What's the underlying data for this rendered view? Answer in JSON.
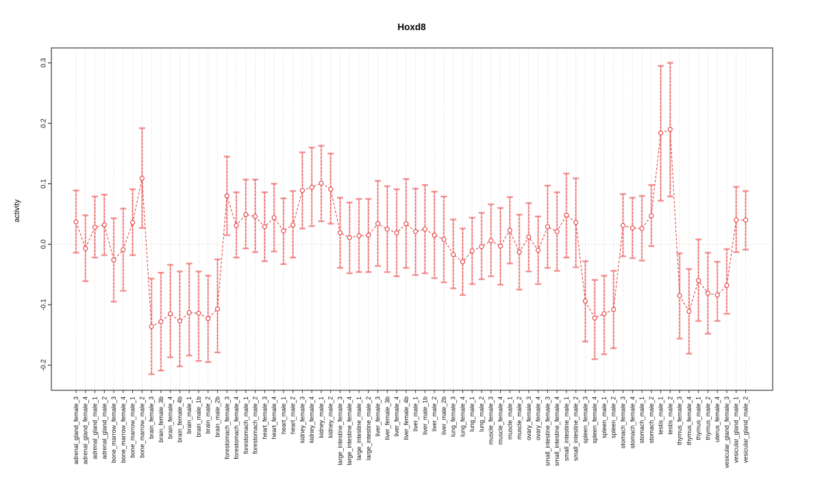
{
  "chart_data": {
    "type": "line",
    "title": "Hoxd8",
    "xlabel": "",
    "ylabel": "activity",
    "ylim": [
      -0.244,
      0.325
    ],
    "yticks": [
      "-0.2",
      "-0.1",
      "0.0",
      "0.1",
      "0.2",
      "0.3"
    ],
    "ytick_values": [
      -0.2,
      -0.1,
      0.0,
      0.1,
      0.2,
      0.3
    ],
    "grid": "dotted vertical line per category; dotted horizontal line at 0",
    "legend_position": "none",
    "categories": [
      "adrenal_gland_female_3",
      "adrenal_gland_female_4",
      "adrenal_gland_male_1",
      "adrenal_gland_male_2",
      "bone_marrow_female_3",
      "bone_marrow_female_4",
      "bone_marrow_male_1",
      "bone_marrow_male_2",
      "brain_female_3",
      "brain_female_3b",
      "brain_female_4",
      "brain_female_4b",
      "brain_male_1",
      "brain_male_1b",
      "brain_male_2",
      "brain_male_2b",
      "forestomach_female_3",
      "forestomach_female_4",
      "forestomach_male_1",
      "forestomach_male_2",
      "heart_female_3",
      "heart_female_4",
      "heart_male_1",
      "heart_male_2",
      "kidney_female_3",
      "kidney_female_4",
      "kidney_male_1",
      "kidney_male_2",
      "large_intestine_female_3",
      "large_intestine_female_4",
      "large_intestine_male_1",
      "large_intestine_male_2",
      "liver_female_3",
      "liver_female_3b",
      "liver_female_4",
      "liver_female_4b",
      "liver_male_1",
      "liver_male_1b",
      "liver_male_2",
      "liver_male_2b",
      "lung_female_3",
      "lung_female_4",
      "lung_male_1",
      "lung_male_2",
      "muscle_female_3",
      "muscle_female_4",
      "muscle_male_1",
      "muscle_male_2",
      "ovary_female_3",
      "ovary_female_4",
      "small_intestine_female_3",
      "small_intestine_female_4",
      "small_intestine_male_1",
      "small_intestine_male_2",
      "spleen_female_3",
      "spleen_female_4",
      "spleen_male_1",
      "spleen_male_2",
      "stomach_female_3",
      "stomach_female_4",
      "stomach_male_1",
      "stomach_male_2",
      "testis_male_1",
      "testis_male_2",
      "thymus_female_3",
      "thymus_female_4",
      "thymus_male_1",
      "thymus_male_2",
      "uterus_female_4",
      "vesicular_gland_female_3",
      "vesicular_gland_male_1",
      "vesicular_gland_male_2"
    ],
    "series": [
      {
        "name": "mean_activity",
        "values": [
          0.037,
          -0.007,
          0.028,
          0.032,
          -0.026,
          -0.009,
          0.036,
          0.109,
          -0.136,
          -0.128,
          -0.115,
          -0.127,
          -0.113,
          -0.114,
          -0.123,
          -0.107,
          0.08,
          0.031,
          0.049,
          0.046,
          0.029,
          0.044,
          0.022,
          0.032,
          0.089,
          0.094,
          0.101,
          0.091,
          0.019,
          0.011,
          0.014,
          0.015,
          0.034,
          0.025,
          0.019,
          0.034,
          0.021,
          0.025,
          0.015,
          0.008,
          -0.017,
          -0.029,
          -0.011,
          -0.004,
          0.006,
          -0.003,
          0.023,
          -0.013,
          0.012,
          -0.01,
          0.029,
          0.021,
          0.048,
          0.036,
          -0.094,
          -0.122,
          -0.115,
          -0.108,
          0.031,
          0.027,
          0.026,
          0.047,
          0.184,
          0.19,
          -0.085,
          -0.111,
          -0.06,
          -0.081,
          -0.084,
          -0.068,
          0.04,
          0.04
        ]
      },
      {
        "name": "ci_lower",
        "values": [
          -0.014,
          -0.061,
          -0.022,
          -0.018,
          -0.095,
          -0.077,
          -0.018,
          0.027,
          -0.215,
          -0.209,
          -0.187,
          -0.202,
          -0.184,
          -0.193,
          -0.195,
          -0.179,
          0.015,
          -0.022,
          -0.007,
          -0.013,
          -0.028,
          -0.012,
          -0.033,
          -0.022,
          0.026,
          0.03,
          0.038,
          0.034,
          -0.039,
          -0.048,
          -0.046,
          -0.046,
          -0.036,
          -0.046,
          -0.053,
          -0.039,
          -0.051,
          -0.048,
          -0.056,
          -0.063,
          -0.073,
          -0.084,
          -0.066,
          -0.058,
          -0.053,
          -0.067,
          -0.032,
          -0.075,
          -0.045,
          -0.066,
          -0.039,
          -0.044,
          -0.022,
          -0.038,
          -0.161,
          -0.19,
          -0.182,
          -0.172,
          -0.02,
          -0.023,
          -0.027,
          -0.003,
          0.072,
          0.079,
          -0.156,
          -0.181,
          -0.127,
          -0.148,
          -0.127,
          -0.115,
          -0.013,
          -0.009
        ]
      },
      {
        "name": "ci_upper",
        "values": [
          0.089,
          0.048,
          0.079,
          0.082,
          0.043,
          0.059,
          0.091,
          0.192,
          -0.057,
          -0.047,
          -0.034,
          -0.045,
          -0.032,
          -0.045,
          -0.052,
          -0.025,
          0.145,
          0.086,
          0.107,
          0.107,
          0.086,
          0.1,
          0.076,
          0.088,
          0.152,
          0.16,
          0.163,
          0.15,
          0.077,
          0.069,
          0.075,
          0.075,
          0.105,
          0.096,
          0.091,
          0.108,
          0.092,
          0.098,
          0.087,
          0.079,
          0.041,
          0.026,
          0.044,
          0.052,
          0.066,
          0.06,
          0.078,
          0.049,
          0.068,
          0.046,
          0.097,
          0.086,
          0.117,
          0.109,
          -0.028,
          -0.059,
          -0.052,
          -0.044,
          0.083,
          0.077,
          0.08,
          0.098,
          0.295,
          0.3,
          -0.015,
          -0.041,
          0.008,
          -0.014,
          -0.029,
          -0.008,
          0.095,
          0.088
        ]
      }
    ],
    "colors": {
      "point": "#e23b3b",
      "line": "#e23b3b",
      "stem_dash": "#e23b3b",
      "stem_wide": "rgba(244,138,138,0.50)",
      "cap": "rgba(240,118,118,0.80)",
      "grid": "#c9c9c9",
      "zero_line": "#c4c4c4",
      "box": "#6b6b6b",
      "tick": "#333333",
      "background": "#ffffff"
    }
  }
}
